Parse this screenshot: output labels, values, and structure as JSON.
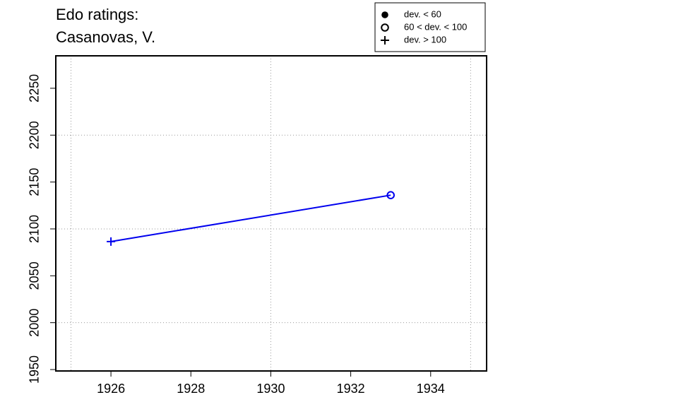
{
  "chart_data": {
    "type": "line",
    "title": [
      "Edo ratings:",
      "Casanovas, V."
    ],
    "x": [
      1926,
      1933
    ],
    "series": [
      {
        "color": "#0000ee",
        "values": [
          2086.5,
          2136
        ],
        "symbols": [
          "plus",
          "circle"
        ]
      }
    ],
    "legend": {
      "position": "top-right",
      "entries": [
        {
          "label": "dev. < 60",
          "symbol": "dot"
        },
        {
          "label": "60 < dev. < 100",
          "symbol": "circle"
        },
        {
          "label": "dev. > 100",
          "symbol": "plus"
        }
      ]
    },
    "xlim": [
      1924.62,
      1935.4
    ],
    "xticks": [
      1926,
      1928,
      1930,
      1932,
      1934
    ],
    "xgrid": [
      1925,
      1930,
      1935
    ],
    "ylim": [
      1948.5,
      2284.6
    ],
    "yticks": [
      1950,
      2000,
      2050,
      2100,
      2150,
      2200,
      2250
    ],
    "ygrid": [
      2000,
      2100,
      2200
    ],
    "grid": true
  }
}
